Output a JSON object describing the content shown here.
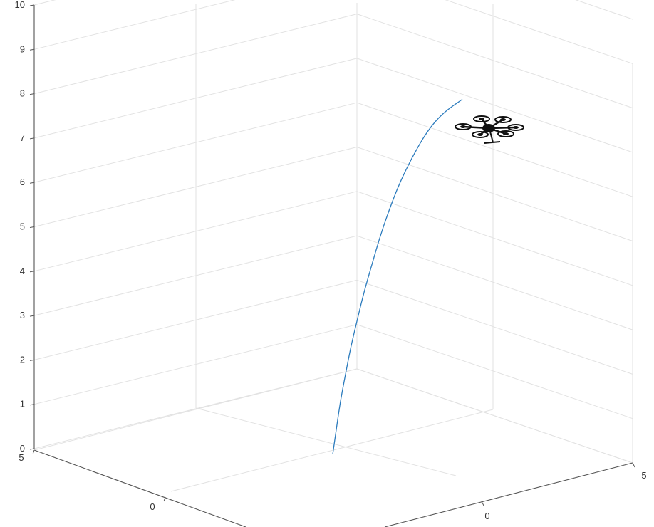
{
  "chart_data": {
    "type": "line3d",
    "title": "",
    "xlabel": "",
    "ylabel": "",
    "zlabel": "",
    "z_ticks": [
      "0",
      "1",
      "2",
      "3",
      "4",
      "5",
      "6",
      "7",
      "8",
      "9",
      "10"
    ],
    "left_axis_ticks": [
      "5",
      "0"
    ],
    "right_axis_ticks": [
      "0",
      "5"
    ],
    "zlim": [
      0,
      10
    ],
    "grid": true,
    "series": [
      {
        "color": "#2b7bbd",
        "z": [
          0,
          0.6,
          1.2,
          1.8,
          2.4,
          3,
          3.6,
          4.2,
          4.8,
          5.4,
          6,
          6.6,
          7.2,
          7.6,
          7.9
        ],
        "progress": [
          0,
          0.03,
          0.06,
          0.1,
          0.14,
          0.19,
          0.24,
          0.3,
          0.36,
          0.43,
          0.51,
          0.61,
          0.73,
          0.85,
          1
        ]
      }
    ],
    "marker": "quadcopter-drone"
  }
}
